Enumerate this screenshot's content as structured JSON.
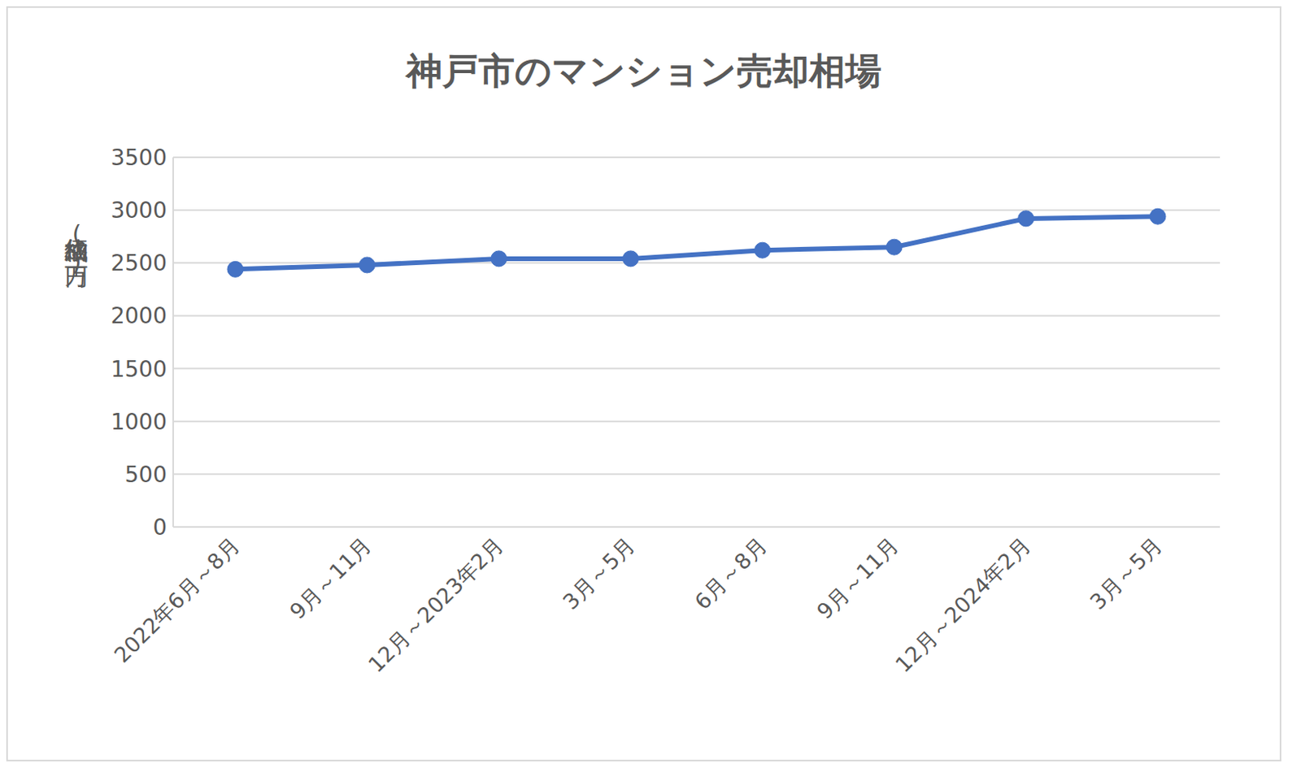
{
  "chart_data": {
    "type": "line",
    "title": "神戸市のマンション売却相場",
    "y_label": "成約価格(万円)",
    "categories": [
      "2022年6月～8月",
      "9月～11月",
      "12月～2023年2月",
      "3月～5月",
      "6月～8月",
      "9月～11月",
      "12月～2024年2月",
      "3月～5月"
    ],
    "values": [
      2440,
      2480,
      2540,
      2540,
      2620,
      2650,
      2920,
      2940
    ],
    "color": "#4472c4",
    "marker": "circle",
    "ylim": [
      0,
      3500
    ],
    "yticks": [
      0,
      500,
      1000,
      1500,
      2000,
      2500,
      3000,
      3500
    ],
    "grid": true
  }
}
